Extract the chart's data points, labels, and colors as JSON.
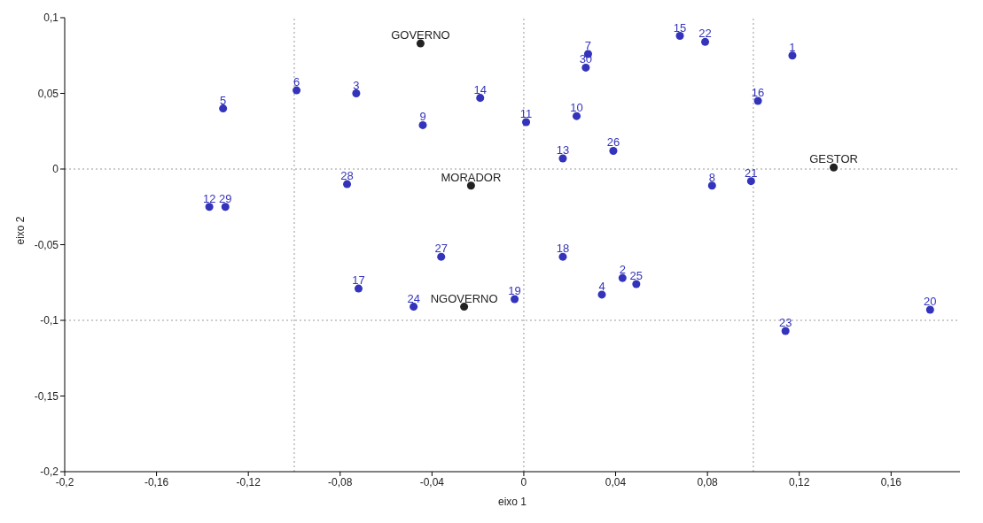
{
  "chart_data": {
    "type": "scatter",
    "xlabel": "eixo 1",
    "ylabel": "eixo 2",
    "xlim": [
      -0.2,
      0.19
    ],
    "xticks": [
      {
        "value": -0.2,
        "label": "-0,2"
      },
      {
        "value": -0.16,
        "label": "-0,16"
      },
      {
        "value": -0.12,
        "label": "-0,12"
      },
      {
        "value": -0.08,
        "label": "-0,08"
      },
      {
        "value": -0.04,
        "label": "-0,04"
      },
      0,
      {
        "value": 0.04,
        "label": "0,04"
      },
      {
        "value": 0.08,
        "label": "0,08"
      },
      {
        "value": 0.12,
        "label": "0,12"
      },
      {
        "value": 0.16,
        "label": "0,16"
      }
    ],
    "ylim": [
      -0.2,
      0.1
    ],
    "yticks": [
      {
        "value": -0.2,
        "label": "-0,2"
      },
      {
        "value": -0.15,
        "label": "-0,15"
      },
      {
        "value": -0.1,
        "label": "-0,1"
      },
      {
        "value": -0.05,
        "label": "-0,05"
      },
      0,
      {
        "value": 0.05,
        "label": "0,05"
      },
      {
        "value": 0.1,
        "label": "0,1"
      }
    ],
    "ref_lines": [
      {
        "axis": "x",
        "value": -0.1,
        "color": "#999999",
        "line_style": "dotted"
      },
      {
        "axis": "x",
        "value": 0,
        "color": "#999999",
        "line_style": "dotted"
      },
      {
        "axis": "x",
        "value": 0.1,
        "color": "#999999",
        "line_style": "dotted"
      },
      {
        "axis": "y",
        "value": 0,
        "color": "#999999",
        "line_style": "dotted"
      },
      {
        "axis": "y",
        "value": -0.1,
        "color": "#999999",
        "line_style": "dotted"
      }
    ],
    "annotations": [
      {
        "text": "1",
        "x": 0.117,
        "y": 0.075
      },
      {
        "text": "2",
        "x": 0.043,
        "y": -0.072
      },
      {
        "text": "3",
        "x": -0.073,
        "y": 0.05
      },
      {
        "text": "4",
        "x": 0.034,
        "y": -0.083
      },
      {
        "text": "5",
        "x": -0.131,
        "y": 0.04
      },
      {
        "text": "6",
        "x": -0.099,
        "y": 0.052
      },
      {
        "text": "7",
        "x": 0.028,
        "y": 0.076
      },
      {
        "text": "8",
        "x": 0.082,
        "y": -0.011
      },
      {
        "text": "9",
        "x": -0.044,
        "y": 0.029
      },
      {
        "text": "10",
        "x": 0.023,
        "y": 0.035
      },
      {
        "text": "11",
        "x": 0.001,
        "y": 0.031
      },
      {
        "text": "12",
        "x": -0.137,
        "y": -0.025
      },
      {
        "text": "13",
        "x": 0.017,
        "y": 0.007
      },
      {
        "text": "14",
        "x": -0.019,
        "y": 0.047
      },
      {
        "text": "15",
        "x": 0.068,
        "y": 0.088
      },
      {
        "text": "16",
        "x": 0.102,
        "y": 0.045
      },
      {
        "text": "17",
        "x": -0.072,
        "y": -0.079
      },
      {
        "text": "18",
        "x": 0.017,
        "y": -0.058
      },
      {
        "text": "19",
        "x": -0.004,
        "y": -0.086
      },
      {
        "text": "20",
        "x": 0.177,
        "y": -0.093
      },
      {
        "text": "21",
        "x": 0.099,
        "y": -0.008
      },
      {
        "text": "22",
        "x": 0.079,
        "y": 0.084
      },
      {
        "text": "23",
        "x": 0.114,
        "y": -0.107
      },
      {
        "text": "24",
        "x": -0.048,
        "y": -0.091
      },
      {
        "text": "25",
        "x": 0.049,
        "y": -0.076
      },
      {
        "text": "26",
        "x": 0.039,
        "y": 0.012
      },
      {
        "text": "27",
        "x": -0.036,
        "y": -0.058
      },
      {
        "text": "28",
        "x": -0.077,
        "y": -0.01
      },
      {
        "text": "29",
        "x": -0.13,
        "y": -0.025
      },
      {
        "text": "30",
        "x": 0.027,
        "y": 0.067
      },
      {
        "text": "GOVERNO",
        "x": -0.045,
        "y": 0.083
      },
      {
        "text": "MORADOR",
        "x": -0.023,
        "y": -0.011
      },
      {
        "text": "NGOVERNO",
        "x": -0.026,
        "y": -0.091
      },
      {
        "text": "GESTOR",
        "x": 0.135,
        "y": 0.001
      }
    ],
    "marker": "circle",
    "series": [
      {
        "color": "#3333bb",
        "x": [
          0.117,
          0.043,
          -0.073,
          0.034,
          -0.131,
          -0.099,
          0.028,
          0.082,
          -0.044,
          0.023,
          0.001,
          -0.137,
          0.017,
          -0.019,
          0.068,
          0.102,
          -0.072,
          0.017,
          -0.004,
          0.177,
          0.099,
          0.079,
          0.114,
          -0.048,
          0.049,
          0.039,
          -0.036,
          -0.077,
          -0.13,
          0.027
        ],
        "values": [
          0.075,
          -0.072,
          0.05,
          -0.083,
          0.04,
          0.052,
          0.076,
          -0.011,
          0.029,
          0.035,
          0.031,
          -0.025,
          0.007,
          0.047,
          0.088,
          0.045,
          -0.079,
          -0.058,
          -0.086,
          -0.093,
          -0.008,
          0.084,
          -0.107,
          -0.091,
          -0.076,
          0.012,
          -0.058,
          -0.01,
          -0.025,
          0.067
        ]
      },
      {
        "color": "#222222",
        "x": [
          -0.045,
          -0.023,
          -0.026,
          0.135
        ],
        "values": [
          0.083,
          -0.011,
          -0.091,
          0.001
        ]
      }
    ],
    "colors": [
      "#3333bb",
      "#3333bb",
      "#3333bb",
      "#3333bb",
      "#3333bb",
      "#3333bb",
      "#3333bb",
      "#3333bb",
      "#3333bb",
      "#3333bb",
      "#3333bb",
      "#3333bb",
      "#3333bb",
      "#3333bb",
      "#3333bb",
      "#3333bb",
      "#3333bb",
      "#3333bb",
      "#3333bb",
      "#3333bb",
      "#3333bb",
      "#3333bb",
      "#3333bb",
      "#3333bb",
      "#3333bb",
      "#3333bb",
      "#3333bb",
      "#3333bb",
      "#3333bb",
      "#3333bb",
      "#222222",
      "#222222",
      "#222222",
      "#222222"
    ]
  }
}
